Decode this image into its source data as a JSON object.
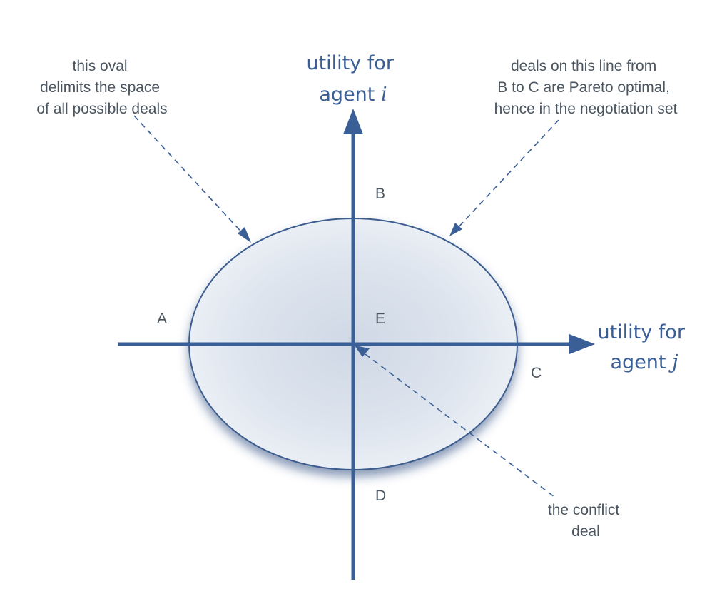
{
  "annotations": {
    "oval_note": [
      "this oval",
      "delimits the space",
      "of all possible deals"
    ],
    "pareto_note": [
      "deals on this line from",
      "B to C are Pareto optimal,",
      "hence in the negotiation set"
    ],
    "conflict_note": [
      "the conflict",
      "deal"
    ]
  },
  "axes": {
    "vertical": {
      "title_line1": "utility for",
      "title_prefix": "agent ",
      "title_symbol": "i"
    },
    "horizontal": {
      "title_line1": "utility for",
      "title_prefix": "agent ",
      "title_symbol": "j"
    }
  },
  "points": {
    "a": "A",
    "b": "B",
    "c": "C",
    "d": "D",
    "e": "E"
  },
  "colors": {
    "axis": "#3a5f96",
    "oval_stroke": "#3c5d8e",
    "oval_fill": "#dfe6ef",
    "text": "#4a5560"
  }
}
